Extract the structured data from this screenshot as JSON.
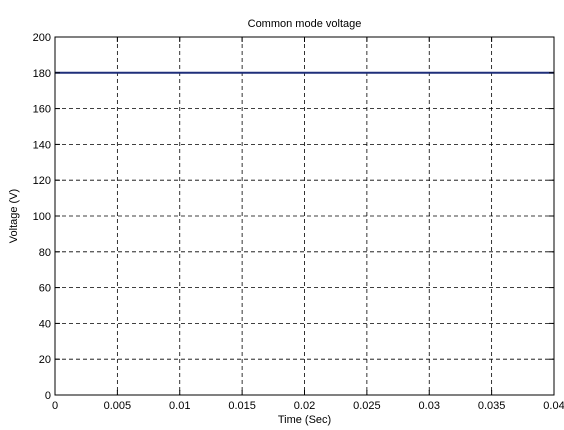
{
  "chart_data": {
    "type": "line",
    "title": "Common mode voltage",
    "xlabel": "Time (Sec)",
    "ylabel": "Voltage (V)",
    "xlim": [
      0,
      0.04
    ],
    "ylim": [
      0,
      200
    ],
    "x_ticks": [
      "0",
      "0.005",
      "0.01",
      "0.015",
      "0.02",
      "0.025",
      "0.03",
      "0.035",
      "0.04"
    ],
    "y_ticks": [
      "0",
      "20",
      "40",
      "60",
      "80",
      "100",
      "120",
      "140",
      "160",
      "180",
      "200"
    ],
    "grid": true,
    "series": [
      {
        "x": [
          0,
          0.04
        ],
        "y": [
          180,
          180
        ],
        "color": "#1f2f7a"
      }
    ]
  }
}
